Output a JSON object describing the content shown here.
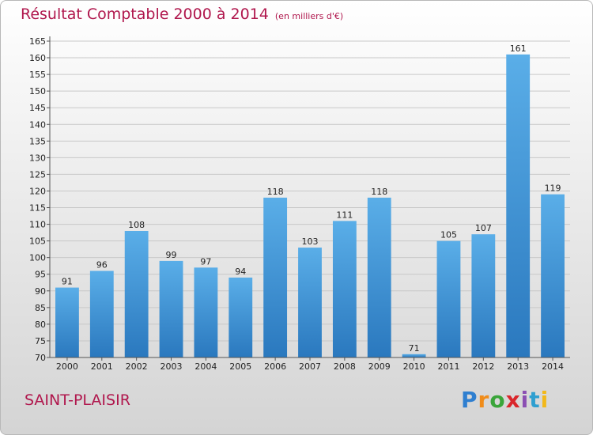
{
  "title": "Résultat Comptable 2000 à 2014",
  "subtitle": "(en milliers d'€)",
  "place": "SAINT-PLAISIR",
  "logo": {
    "letters": [
      "P",
      "r",
      "o",
      "x",
      "i",
      "t",
      "i"
    ],
    "colors": [
      "#2f7fd0",
      "#f08c1a",
      "#3aa53a",
      "#d9262b",
      "#8b4fb3",
      "#2f9fd0",
      "#f2b81a"
    ]
  },
  "colors": {
    "bar_top": "#5aaee8",
    "bar_bottom": "#2a78be",
    "title": "#b0174d"
  },
  "chart_data": {
    "type": "bar",
    "categories": [
      "2000",
      "2001",
      "2002",
      "2003",
      "2004",
      "2005",
      "2006",
      "2007",
      "2008",
      "2009",
      "2010",
      "2011",
      "2012",
      "2013",
      "2014"
    ],
    "values": [
      91,
      96,
      108,
      99,
      97,
      94,
      118,
      103,
      111,
      118,
      71,
      105,
      107,
      161,
      119
    ],
    "title": "Résultat Comptable 2000 à 2014",
    "xlabel": "",
    "ylabel": "",
    "ylim": [
      70,
      165
    ],
    "yticks": [
      70,
      75,
      80,
      85,
      90,
      95,
      100,
      105,
      110,
      115,
      120,
      125,
      130,
      135,
      140,
      145,
      150,
      155,
      160,
      165
    ],
    "grid": "horizontal"
  }
}
